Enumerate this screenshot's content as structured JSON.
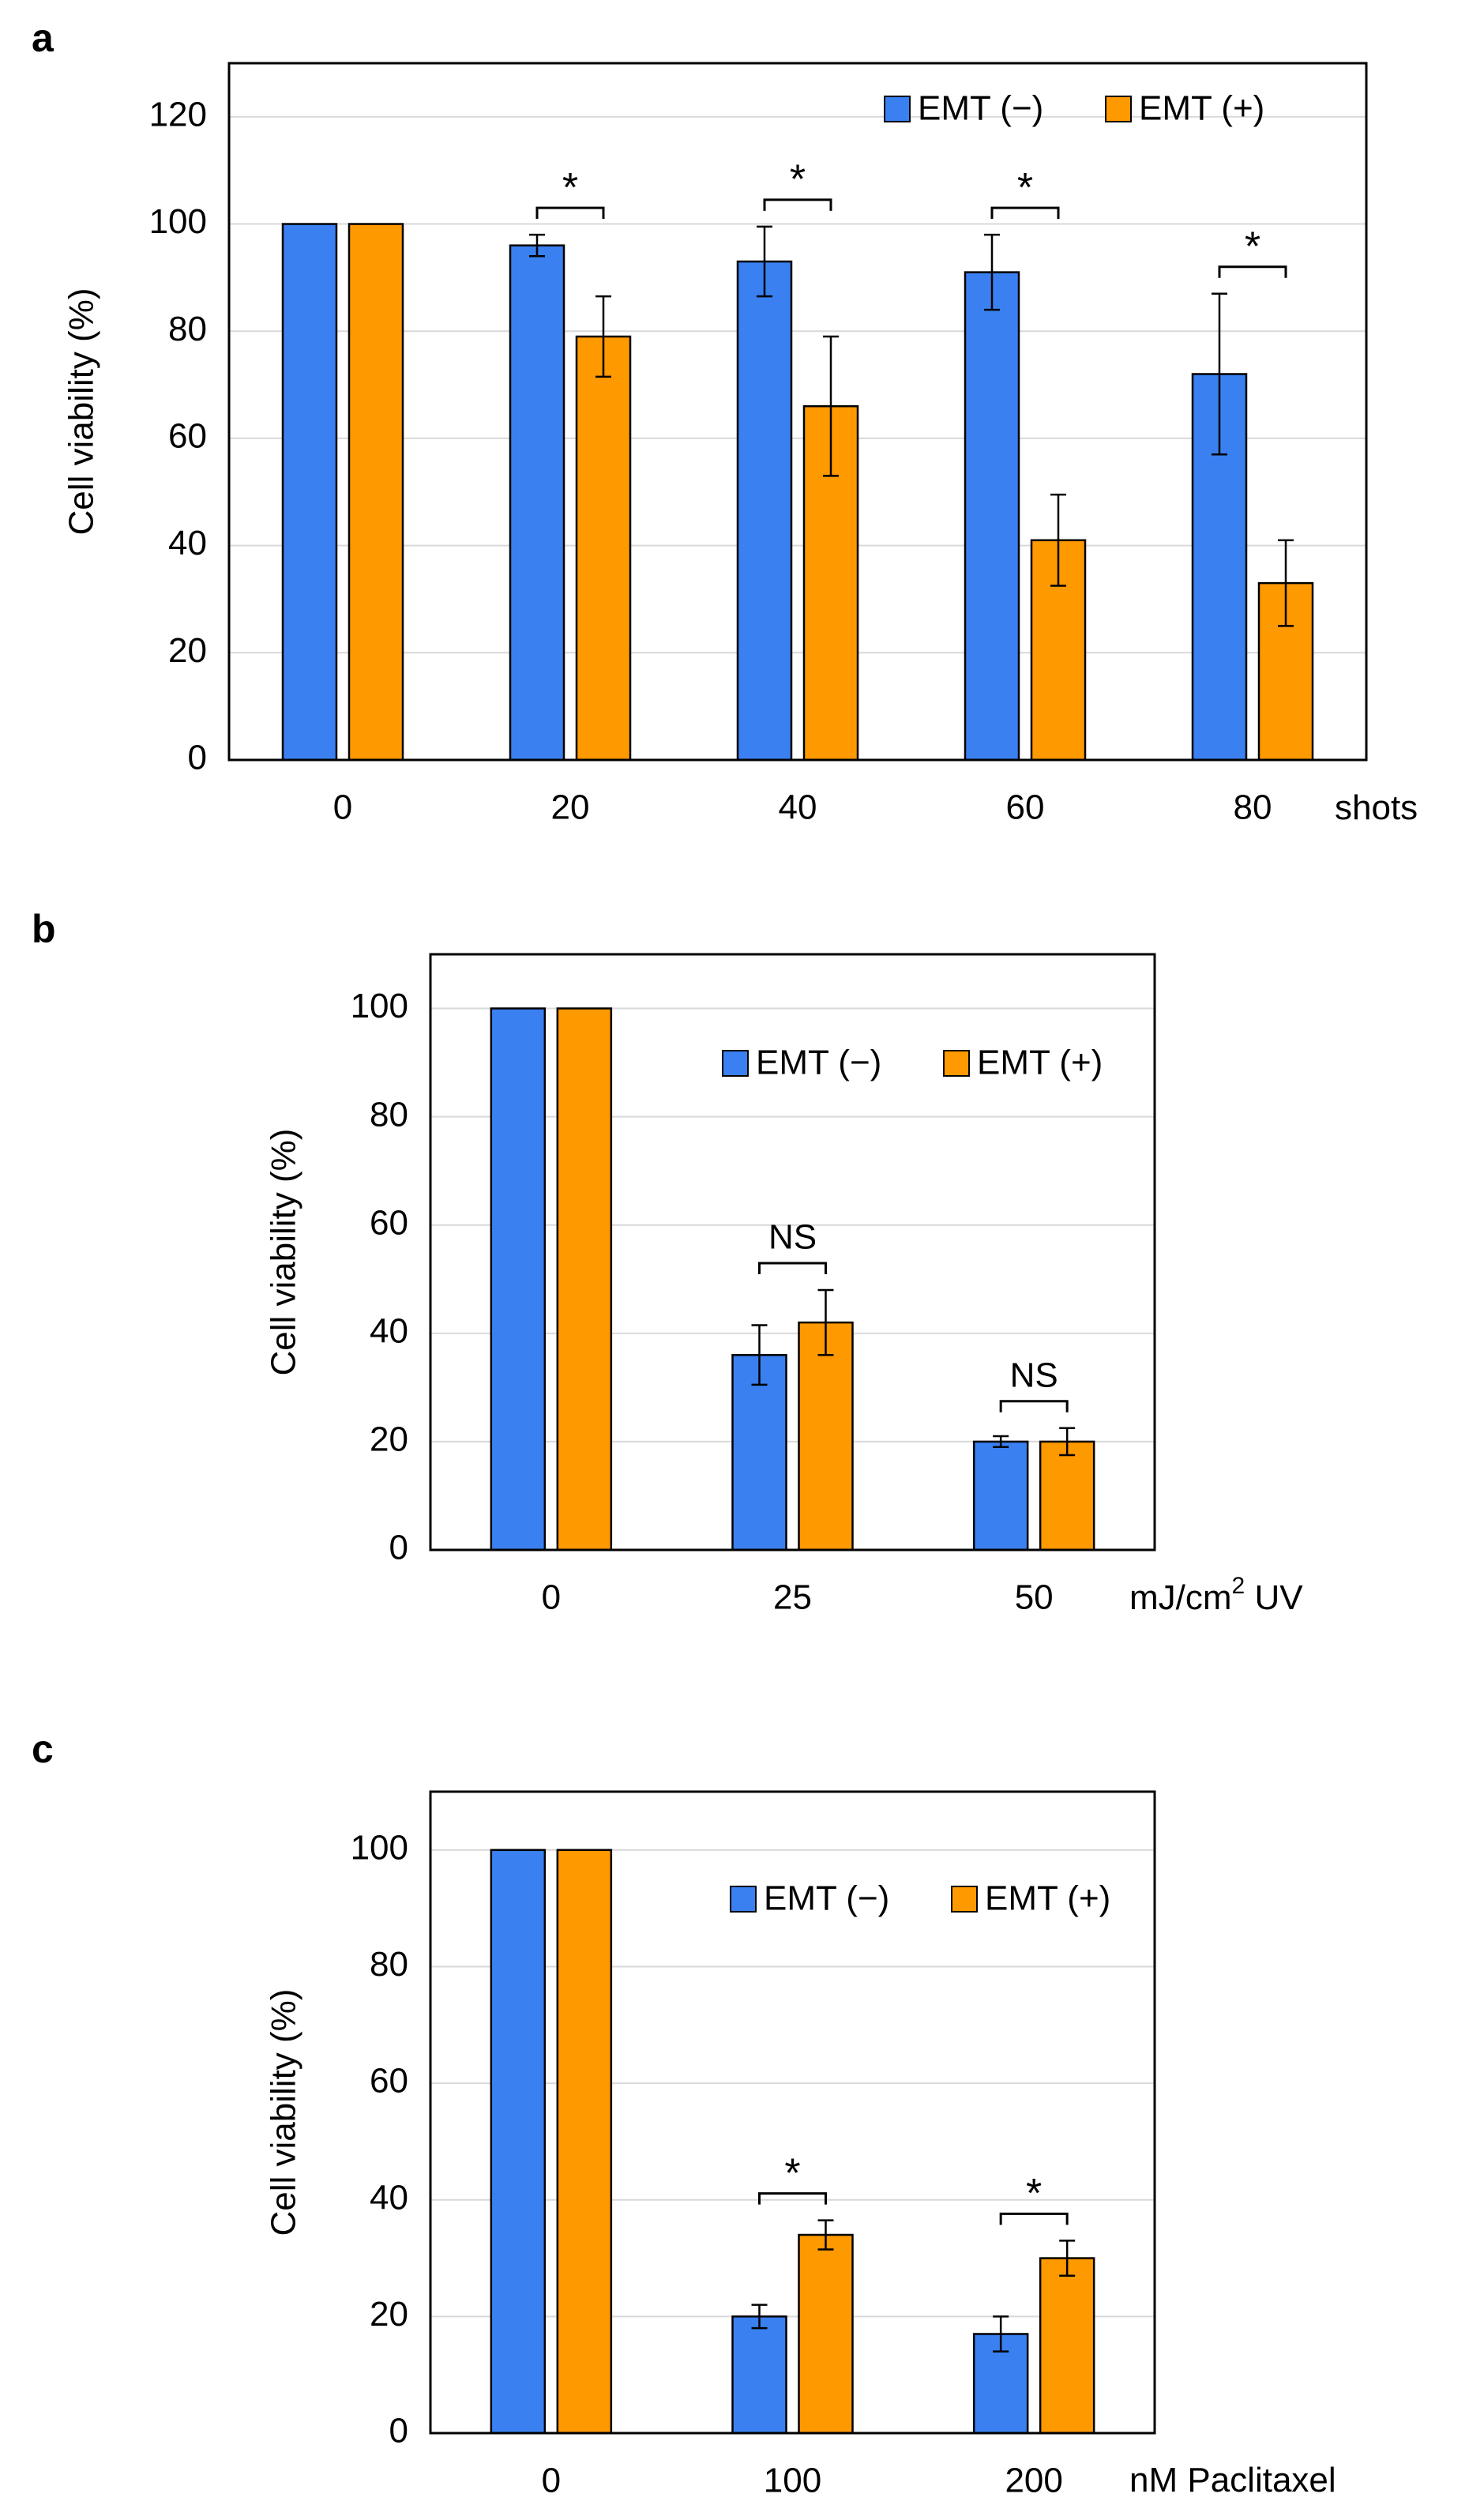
{
  "colors": {
    "emt_minus": "#3a80f0",
    "emt_plus": "#ff9900",
    "grid": "#d9d9d9",
    "frame": "#000000"
  },
  "chart_data": [
    {
      "panel_label": "a",
      "type": "bar",
      "categories": [
        "0",
        "20",
        "40",
        "60",
        "80"
      ],
      "xlabel": "shots",
      "ylabel": "Cell viability (%)",
      "ylim": [
        0,
        130
      ],
      "yticks": [
        0,
        20,
        40,
        60,
        80,
        100,
        120
      ],
      "grid": true,
      "legend_position": "top-right",
      "series": [
        {
          "name": "EMT (−)",
          "color": "#3a80f0",
          "values": [
            100,
            96,
            93,
            91,
            72
          ],
          "errors": [
            0,
            2,
            6.5,
            7,
            15
          ]
        },
        {
          "name": "EMT (+)",
          "color": "#ff9900",
          "values": [
            100,
            79,
            66,
            41,
            33
          ],
          "errors": [
            0,
            7.5,
            13,
            8.5,
            8
          ]
        }
      ],
      "significance": [
        {
          "category_index": 1,
          "label": "*"
        },
        {
          "category_index": 2,
          "label": "*"
        },
        {
          "category_index": 3,
          "label": "*"
        },
        {
          "category_index": 4,
          "label": "*"
        }
      ]
    },
    {
      "panel_label": "b",
      "type": "bar",
      "categories": [
        "0",
        "25",
        "50"
      ],
      "xlabel": "mJ/cm",
      "xlabel_sup": "2",
      "xlabel_tail": " UV",
      "ylabel": "Cell viability (%)",
      "ylim": [
        0,
        110
      ],
      "yticks": [
        0,
        20,
        40,
        60,
        80,
        100
      ],
      "grid": true,
      "legend_position": "top-right",
      "series": [
        {
          "name": "EMT (−)",
          "color": "#3a80f0",
          "values": [
            100,
            36,
            20
          ],
          "errors": [
            0,
            5.5,
            1
          ]
        },
        {
          "name": "EMT (+)",
          "color": "#ff9900",
          "values": [
            100,
            42,
            20
          ],
          "errors": [
            0,
            6,
            2.5
          ]
        }
      ],
      "significance": [
        {
          "category_index": 1,
          "label": "NS"
        },
        {
          "category_index": 2,
          "label": "NS"
        }
      ]
    },
    {
      "panel_label": "c",
      "type": "bar",
      "categories": [
        "0",
        "100",
        "200"
      ],
      "xlabel": "nM Paclitaxel",
      "ylabel": "Cell viability (%)",
      "ylim": [
        0,
        110
      ],
      "yticks": [
        0,
        20,
        40,
        60,
        80,
        100
      ],
      "grid": true,
      "legend_position": "top-right",
      "series": [
        {
          "name": "EMT (−)",
          "color": "#3a80f0",
          "values": [
            100,
            20,
            17
          ],
          "errors": [
            0,
            2,
            3
          ]
        },
        {
          "name": "EMT (+)",
          "color": "#ff9900",
          "values": [
            100,
            34,
            30
          ],
          "errors": [
            0,
            2.5,
            3
          ]
        }
      ],
      "significance": [
        {
          "category_index": 1,
          "label": "*"
        },
        {
          "category_index": 2,
          "label": "*"
        }
      ]
    }
  ]
}
